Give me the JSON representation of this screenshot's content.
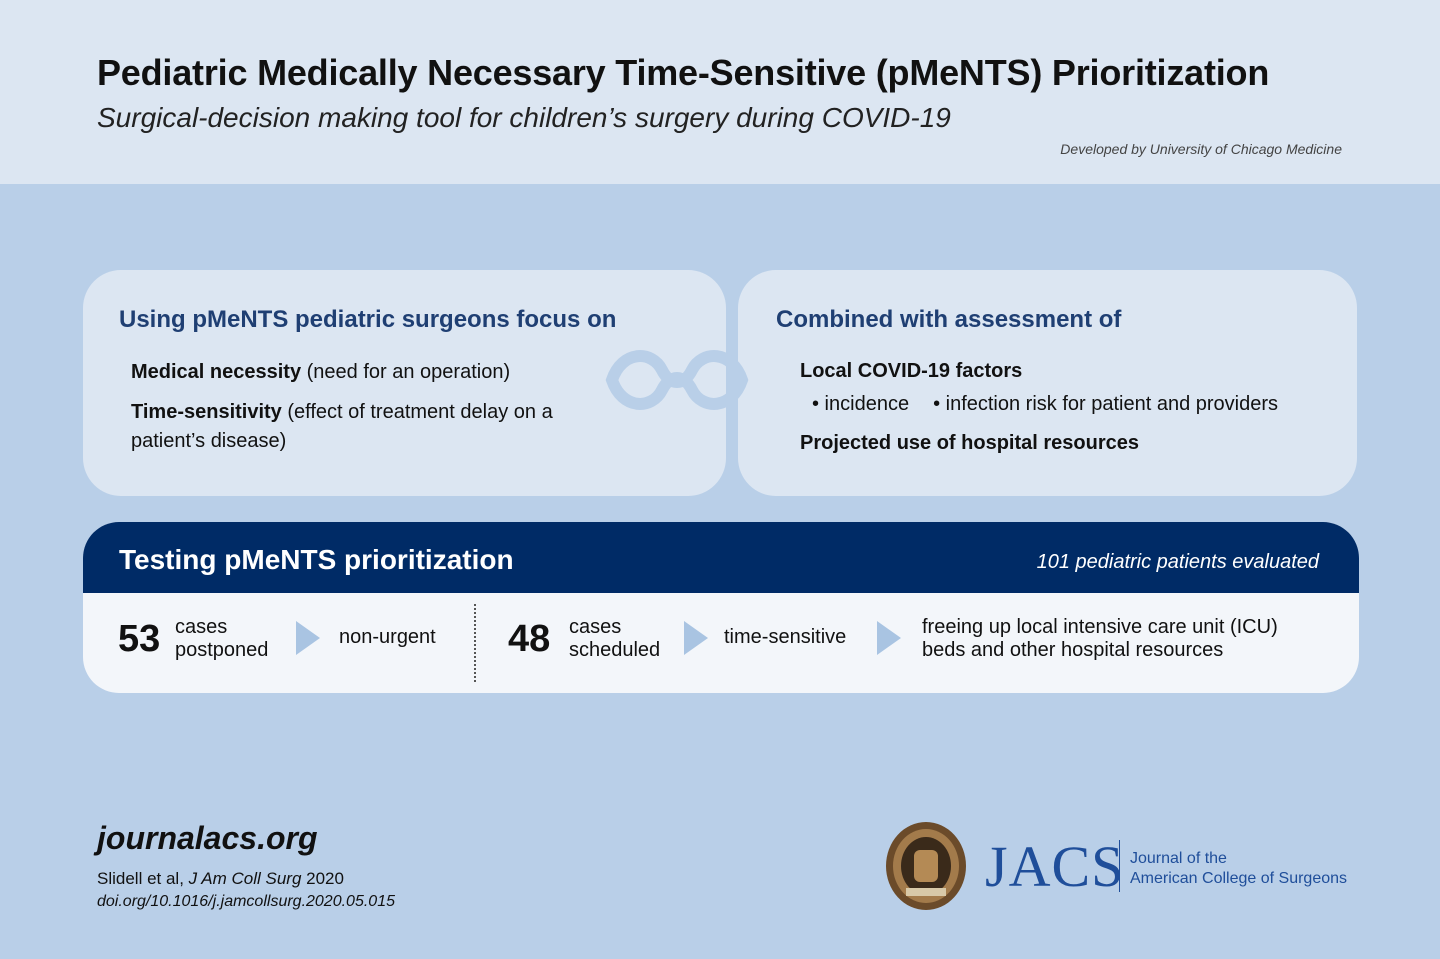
{
  "header": {
    "title": "Pediatric Medically Necessary Time-Sensitive (pMeNTS) Prioritization",
    "subtitle": "Surgical-decision making tool for children’s surgery during COVID-19",
    "credit": "Developed by University of Chicago Medicine"
  },
  "focus": {
    "heading": "Using pMeNTS pediatric surgeons focus on",
    "items": [
      {
        "term": "Medical necessity",
        "desc": " (need for an operation)"
      },
      {
        "term": "Time-sensitivity",
        "desc": " (effect of treatment delay on a patient’s disease)"
      }
    ]
  },
  "assessment": {
    "heading": "Combined with assessment of",
    "local_factors": "Local COVID-19 factors",
    "bullets": [
      "• incidence",
      "• infection risk for patient and providers"
    ],
    "resources": "Projected use of hospital resources"
  },
  "testing": {
    "title": "Testing pMeNTS prioritization",
    "count": "101 pediatric patients evaluated",
    "postponed": {
      "number": "53",
      "line1": "cases",
      "line2": "postponed",
      "result": "non-urgent"
    },
    "scheduled": {
      "number": "48",
      "line1": "cases",
      "line2": "scheduled",
      "result": "time-sensitive"
    },
    "outcome": {
      "line1": "freeing up local intensive care unit (ICU)",
      "line2": "beds and other hospital resources"
    }
  },
  "footer": {
    "site": "journalacs.org",
    "cite_authors": "Slidell et al, ",
    "cite_journal": "J Am Coll Surg",
    "cite_year": " 2020",
    "doi": "doi.org/10.1016/j.jamcollsurg.2020.05.015",
    "logo_text": "JACS",
    "journal_line1": "Journal of the",
    "journal_line2": "American College of Surgeons"
  },
  "colors": {
    "navy": "#002b66",
    "heading_blue": "#1f3f73",
    "brand_blue": "#1f4e9a",
    "background": "#b9cfe8",
    "panel": "#dce6f2",
    "arrow": "#a9c4e2"
  }
}
